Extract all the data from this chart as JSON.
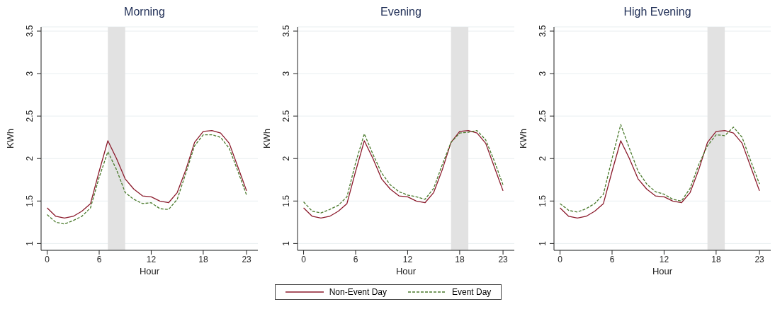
{
  "chart_data": [
    {
      "type": "line",
      "title": "Morning",
      "xlabel": "Hour",
      "ylabel": "KWh",
      "x": [
        0,
        1,
        2,
        3,
        4,
        5,
        6,
        7,
        8,
        9,
        10,
        11,
        12,
        13,
        14,
        15,
        16,
        17,
        18,
        19,
        20,
        21,
        22,
        23
      ],
      "xlim": [
        -0.7,
        24.3
      ],
      "xticks": [
        0,
        6,
        12,
        18,
        23
      ],
      "ylim": [
        0.92,
        3.55
      ],
      "yticks": [
        1,
        1.5,
        2,
        2.5,
        3,
        3.5
      ],
      "grid": "y",
      "legend": false,
      "bands": [
        {
          "axis": "x",
          "from": 7,
          "to": 9,
          "color": "#e2e2e2"
        }
      ],
      "series": [
        {
          "color": "#8b1a2b",
          "line_style": "solid",
          "values": [
            1.42,
            1.32,
            1.3,
            1.32,
            1.38,
            1.47,
            1.85,
            2.21,
            2.0,
            1.76,
            1.64,
            1.56,
            1.55,
            1.5,
            1.48,
            1.6,
            1.87,
            2.19,
            2.32,
            2.33,
            2.3,
            2.18,
            1.9,
            1.62
          ]
        },
        {
          "color": "#4a7a2c",
          "line_style": "dashed",
          "values": [
            1.34,
            1.25,
            1.23,
            1.27,
            1.32,
            1.42,
            1.78,
            2.08,
            1.87,
            1.6,
            1.52,
            1.47,
            1.48,
            1.41,
            1.4,
            1.52,
            1.83,
            2.15,
            2.28,
            2.28,
            2.25,
            2.12,
            1.85,
            1.57
          ]
        }
      ]
    },
    {
      "type": "line",
      "title": "Evening",
      "xlabel": "Hour",
      "ylabel": "KWh",
      "x": [
        0,
        1,
        2,
        3,
        4,
        5,
        6,
        7,
        8,
        9,
        10,
        11,
        12,
        13,
        14,
        15,
        16,
        17,
        18,
        19,
        20,
        21,
        22,
        23
      ],
      "xlim": [
        -0.7,
        24.3
      ],
      "xticks": [
        0,
        6,
        12,
        18,
        23
      ],
      "ylim": [
        0.92,
        3.55
      ],
      "yticks": [
        1,
        1.5,
        2,
        2.5,
        3,
        3.5
      ],
      "grid": "y",
      "legend": "bottom",
      "bands": [
        {
          "axis": "x",
          "from": 17,
          "to": 19,
          "color": "#e2e2e2"
        }
      ],
      "series": [
        {
          "name": "Non-Event Day",
          "color": "#8b1a2b",
          "line_style": "solid",
          "values": [
            1.42,
            1.32,
            1.3,
            1.32,
            1.38,
            1.47,
            1.85,
            2.21,
            2.0,
            1.76,
            1.64,
            1.56,
            1.55,
            1.5,
            1.48,
            1.6,
            1.87,
            2.19,
            2.32,
            2.33,
            2.3,
            2.18,
            1.9,
            1.62
          ]
        },
        {
          "name": "Event Day",
          "color": "#4a7a2c",
          "line_style": "dashed",
          "values": [
            1.49,
            1.38,
            1.36,
            1.4,
            1.45,
            1.55,
            1.95,
            2.29,
            2.05,
            1.83,
            1.69,
            1.61,
            1.57,
            1.55,
            1.52,
            1.65,
            1.93,
            2.19,
            2.3,
            2.31,
            2.33,
            2.22,
            1.97,
            1.69
          ]
        }
      ]
    },
    {
      "type": "line",
      "title": "High Evening",
      "xlabel": "Hour",
      "ylabel": "KWh",
      "x": [
        0,
        1,
        2,
        3,
        4,
        5,
        6,
        7,
        8,
        9,
        10,
        11,
        12,
        13,
        14,
        15,
        16,
        17,
        18,
        19,
        20,
        21,
        22,
        23
      ],
      "xlim": [
        -0.7,
        24.3
      ],
      "xticks": [
        0,
        6,
        12,
        18,
        23
      ],
      "ylim": [
        0.92,
        3.55
      ],
      "yticks": [
        1,
        1.5,
        2,
        2.5,
        3,
        3.5
      ],
      "grid": "y",
      "legend": false,
      "bands": [
        {
          "axis": "x",
          "from": 17,
          "to": 19,
          "color": "#e2e2e2"
        }
      ],
      "series": [
        {
          "color": "#8b1a2b",
          "line_style": "solid",
          "values": [
            1.42,
            1.32,
            1.3,
            1.32,
            1.38,
            1.47,
            1.85,
            2.21,
            2.0,
            1.76,
            1.64,
            1.56,
            1.55,
            1.5,
            1.48,
            1.6,
            1.87,
            2.19,
            2.32,
            2.33,
            2.3,
            2.18,
            1.9,
            1.62
          ]
        },
        {
          "color": "#4a7a2c",
          "line_style": "dashed",
          "values": [
            1.47,
            1.39,
            1.37,
            1.41,
            1.47,
            1.58,
            2.0,
            2.4,
            2.12,
            1.85,
            1.7,
            1.61,
            1.58,
            1.52,
            1.5,
            1.65,
            1.93,
            2.15,
            2.28,
            2.27,
            2.37,
            2.25,
            1.97,
            1.7
          ]
        }
      ]
    }
  ]
}
